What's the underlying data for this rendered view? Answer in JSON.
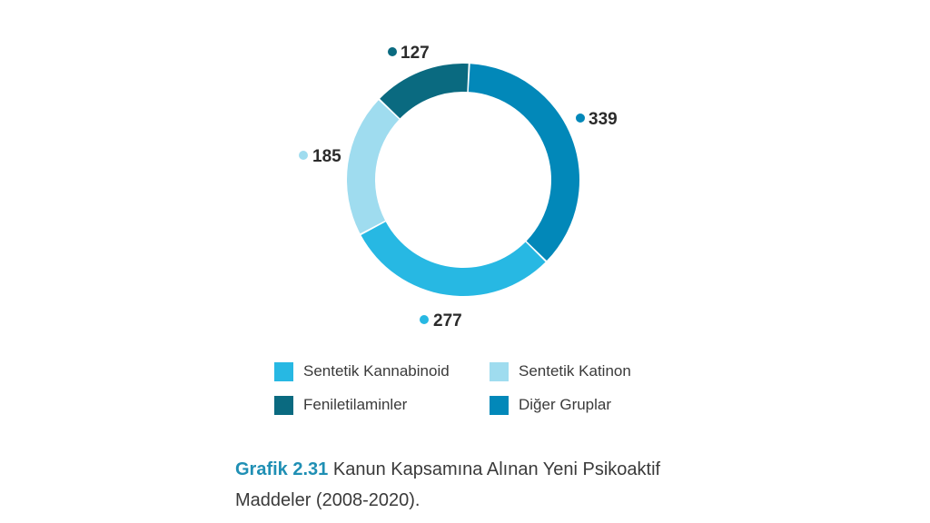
{
  "chart_data": {
    "type": "pie",
    "categories": [
      "Diğer Gruplar",
      "Sentetik Kannabinoid",
      "Sentetik Katinon",
      "Feniletilaminler"
    ],
    "values": [
      339,
      277,
      185,
      127
    ],
    "colors": [
      "#0288b9",
      "#27b8e3",
      "#9fdcef",
      "#0a6a80"
    ],
    "legend": [
      {
        "label": "Sentetik Kannabinoid",
        "color": "#27b8e3"
      },
      {
        "label": "Sentetik Katinon",
        "color": "#9fdcef"
      },
      {
        "label": "Feniletilaminler",
        "color": "#0a6a80"
      },
      {
        "label": "Diğer Gruplar",
        "color": "#0288b9"
      }
    ],
    "legend_position": "bottom",
    "donut": true
  },
  "caption": {
    "prefix": "Grafik 2.31",
    "text": " Kanun Kapsamına Alınan Yeni Psikoaktif Maddeler (2008-2020)."
  }
}
